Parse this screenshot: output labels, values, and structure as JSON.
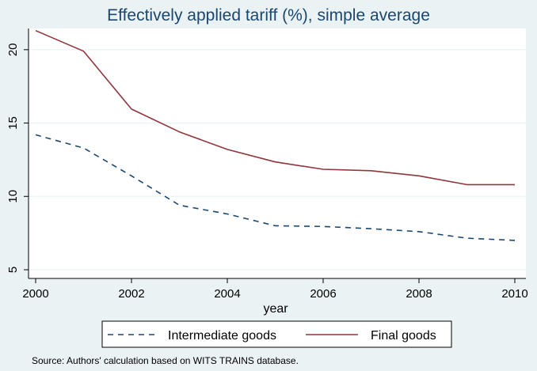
{
  "chart_data": {
    "type": "line",
    "title": "Effectively applied tariff (%), simple average",
    "xlabel": "year",
    "ylabel": "",
    "x": [
      2000,
      2001,
      2002,
      2003,
      2004,
      2005,
      2006,
      2007,
      2008,
      2009,
      2010
    ],
    "xticks": [
      2000,
      2002,
      2004,
      2006,
      2008,
      2010
    ],
    "yticks": [
      5,
      10,
      15,
      20
    ],
    "xlim": [
      2000,
      2010
    ],
    "ylim": [
      5,
      21.5
    ],
    "grid": true,
    "legend_position": "bottom",
    "series": [
      {
        "name": "Intermediate goods",
        "color": "#1a476f",
        "style": "dashed",
        "values": [
          14.2,
          13.3,
          11.4,
          9.4,
          8.8,
          8.0,
          7.95,
          7.8,
          7.6,
          7.15,
          7.0
        ]
      },
      {
        "name": "Final goods",
        "color": "#90353b",
        "style": "solid",
        "values": [
          21.3,
          19.9,
          15.95,
          14.4,
          13.2,
          12.35,
          11.85,
          11.75,
          11.4,
          10.8,
          10.8
        ]
      }
    ],
    "note": "Source: Authors' calculation based on WITS TRAINS database."
  }
}
